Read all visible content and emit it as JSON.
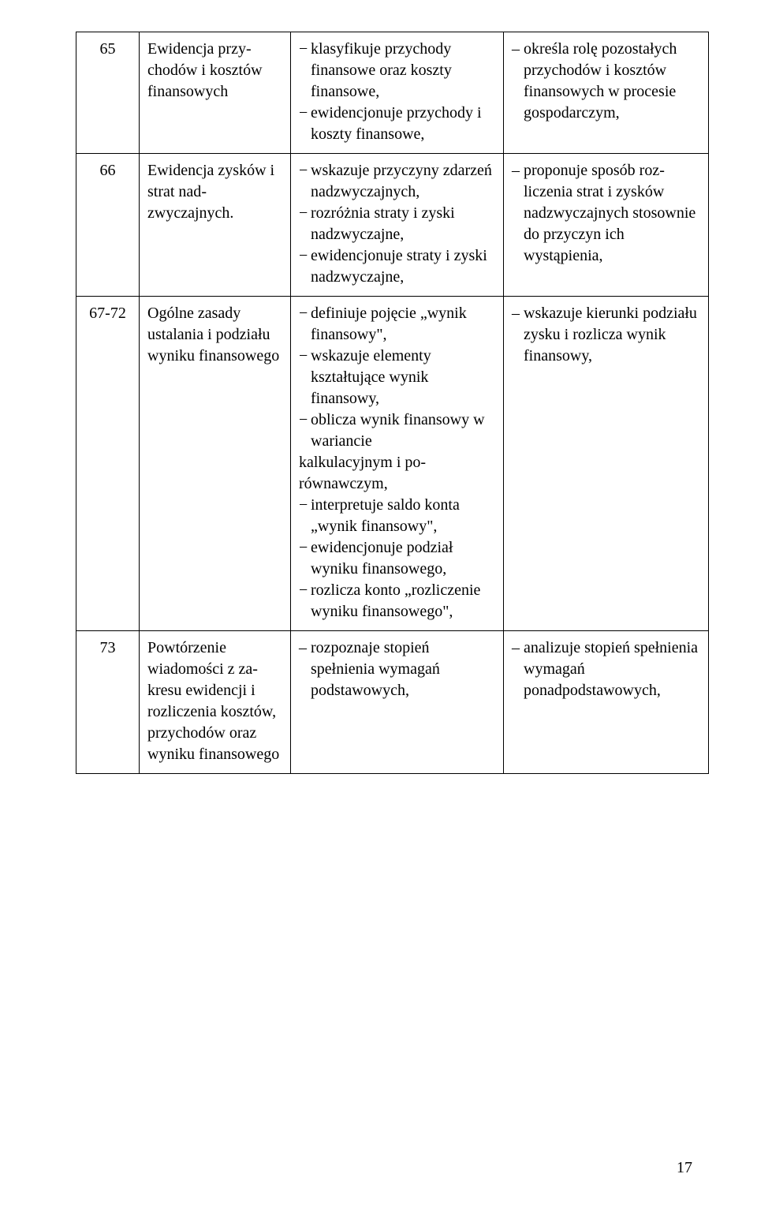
{
  "rows": [
    {
      "num": "65",
      "col2": "Ewidencja przy­chodów i kosz­tów finansowych",
      "col3_items": [
        "klasyfikuje przycho­dy finansowe oraz koszty finansowe,",
        "ewidencjonuje przychody i koszty finansowe,"
      ],
      "col4_items": [
        "określa rolę pozo­stałych przychodów i kosztów finanso­wych w procesie go­spodarczym,"
      ]
    },
    {
      "num": "66",
      "col2": "Ewidencja zy­sków i strat nad­zwyczajnych.",
      "col3_items": [
        "wskazuje przyczyny zdarzeń nadzwy­czajnych,",
        "rozróżnia straty i zy­ski nadzwyczajne,",
        "ewidencjonuje straty i zyski nadzwyczaj­ne,"
      ],
      "col4_items": [
        "proponuje sposób roz­liczenia strat i zysków nadzwyczajnych sto­sownie do przyczyn ich wystąpienia,"
      ]
    },
    {
      "num": "67-72",
      "col2": "Ogólne zasady ustalania i po­działu wyniku finansowego",
      "col3_items": [
        "definiuje pojęcie „wynik finansowy\",",
        "wskazuje elementy kształtujące wynik finansowy,",
        "oblicza wynik finan­sowy w wariancie",
        "interpretuje saldo konta „wynik finan­sowy\",",
        "ewidencjonuje po­dział wyniku finan­sowego,",
        "rozlicza konto „roz­liczenie wyniku finansowego\","
      ],
      "col3_special_line": "kalkulacyjnym i po­równawczym,",
      "col4_items": [
        "wskazuje kierunki po­działu zysku i rozlicza wynik finansowy,"
      ]
    },
    {
      "num": "73",
      "col2": "Powtórzenie wiadomości z za­kresu ewidencji i rozliczenia kosztów, przy­chodów oraz wy­niku finansowego",
      "col3_items": [
        "rozpoznaje stopień spełnienia wymagań podstawowych,"
      ],
      "col4_items": [
        "analizuje stopień spełnienia wymagań ponadpodstawowych,"
      ]
    }
  ],
  "page_number": "17"
}
